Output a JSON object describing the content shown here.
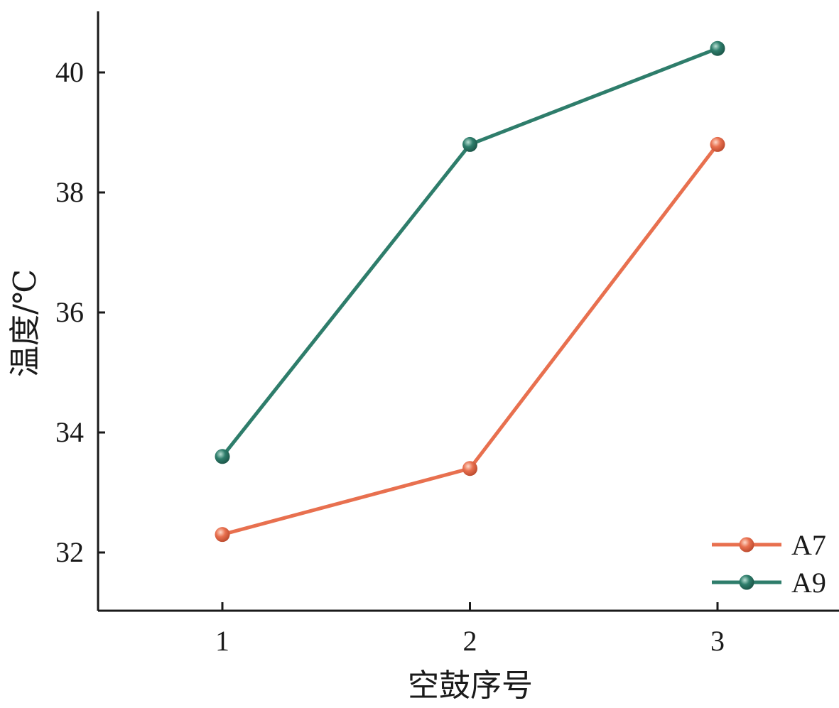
{
  "chart_data": {
    "type": "line",
    "x": [
      1,
      2,
      3
    ],
    "xlabel": "空鼓序号",
    "ylabel": "温度/℃",
    "xticks": [
      "1",
      "2",
      "3"
    ],
    "yticks": [
      "32",
      "34",
      "36",
      "38",
      "40"
    ],
    "ylim": [
      31,
      41
    ],
    "grid": false,
    "legend_position": "bottom-right",
    "series": [
      {
        "name": "A7",
        "color": "#e8704f",
        "values": [
          32.3,
          33.4,
          38.8
        ]
      },
      {
        "name": "A9",
        "color": "#2e7d6b",
        "values": [
          33.6,
          38.8,
          40.4
        ]
      }
    ]
  }
}
